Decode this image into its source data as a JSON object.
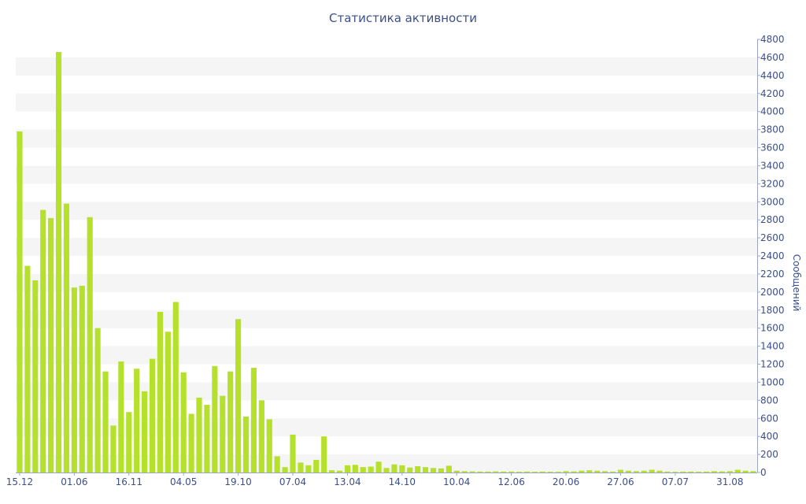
{
  "chart_data": {
    "type": "bar",
    "title": "Статистика активности",
    "xlabel": "",
    "ylabel": "Сообщений",
    "ylim": [
      0,
      4800
    ],
    "y_axis_position": "right",
    "y_ticks": [
      0,
      200,
      400,
      600,
      800,
      1000,
      1200,
      1400,
      1600,
      1800,
      2000,
      2200,
      2400,
      2600,
      2800,
      3000,
      3200,
      3400,
      3600,
      3800,
      4000,
      4200,
      4400,
      4600,
      4800
    ],
    "grid": "alternating horizontal bands",
    "legend": "none",
    "bar_color": "#b5e02c",
    "band_color": "#f5f5f5",
    "text_color": "#3b4f8a",
    "x_tick_labels": [
      {
        "index": 0,
        "label": "15.12"
      },
      {
        "index": 7,
        "label": "01.06"
      },
      {
        "index": 14,
        "label": "16.11"
      },
      {
        "index": 21,
        "label": "04.05"
      },
      {
        "index": 28,
        "label": "19.10"
      },
      {
        "index": 35,
        "label": "07.04"
      },
      {
        "index": 42,
        "label": "13.04"
      },
      {
        "index": 49,
        "label": "14.10"
      },
      {
        "index": 56,
        "label": "10.04"
      },
      {
        "index": 63,
        "label": "12.06"
      },
      {
        "index": 70,
        "label": "20.06"
      },
      {
        "index": 77,
        "label": "27.06"
      },
      {
        "index": 84,
        "label": "07.07"
      },
      {
        "index": 91,
        "label": "31.08"
      }
    ],
    "values": [
      3780,
      2290,
      2130,
      2910,
      2820,
      4660,
      2980,
      2050,
      2070,
      2830,
      1600,
      1120,
      520,
      1230,
      670,
      1150,
      900,
      1260,
      1780,
      1560,
      1890,
      1110,
      650,
      830,
      750,
      1180,
      850,
      1120,
      1700,
      620,
      1160,
      800,
      590,
      180,
      60,
      420,
      110,
      80,
      140,
      400,
      25,
      20,
      80,
      85,
      60,
      65,
      120,
      50,
      90,
      80,
      55,
      70,
      60,
      50,
      45,
      75,
      20,
      15,
      12,
      10,
      10,
      12,
      10,
      10,
      8,
      10,
      8,
      10,
      8,
      8,
      15,
      12,
      20,
      25,
      20,
      15,
      10,
      30,
      20,
      15,
      20,
      30,
      20,
      10,
      8,
      10,
      10,
      8,
      10,
      15,
      12,
      15,
      30,
      20,
      15
    ]
  }
}
